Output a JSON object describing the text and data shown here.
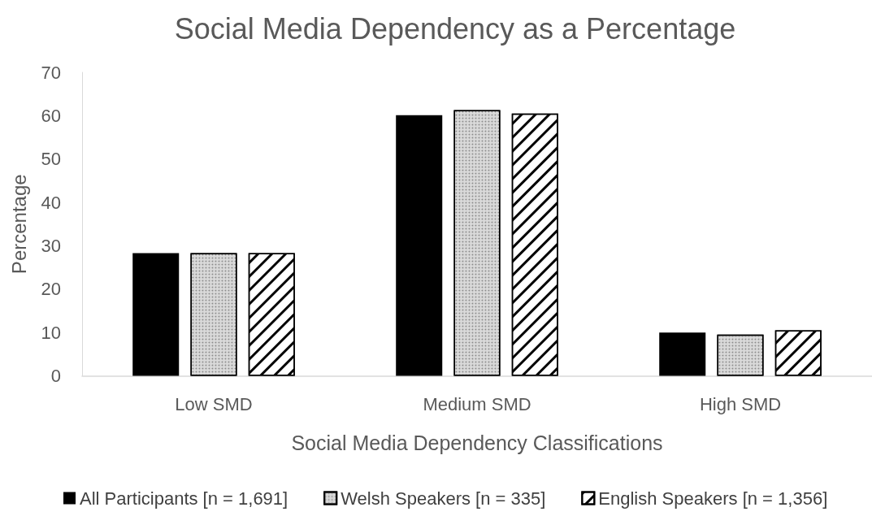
{
  "chart_data": {
    "type": "bar",
    "title": "Social Media Dependency as a Percentage",
    "xlabel": "Social Media Dependency Classifications",
    "ylabel": "Percentage",
    "categories": [
      "Low SMD",
      "Medium SMD",
      "High SMD"
    ],
    "series": [
      {
        "name": "All Participants [n = 1,691]",
        "color": "#000000",
        "values": [
          28.3,
          60.1,
          10.0
        ]
      },
      {
        "name": "Welsh Speakers [n = 335]",
        "color": "#d9d9d9",
        "values": [
          28.3,
          61.3,
          9.5
        ]
      },
      {
        "name": "English Speakers [n = 1,356]",
        "color": "#ffffff",
        "values": [
          28.3,
          60.5,
          10.5
        ]
      }
    ],
    "ylim": [
      0,
      70
    ],
    "yticks": [
      0,
      10,
      20,
      30,
      40,
      50,
      60,
      70
    ],
    "grid": false,
    "legend": "bottom"
  }
}
